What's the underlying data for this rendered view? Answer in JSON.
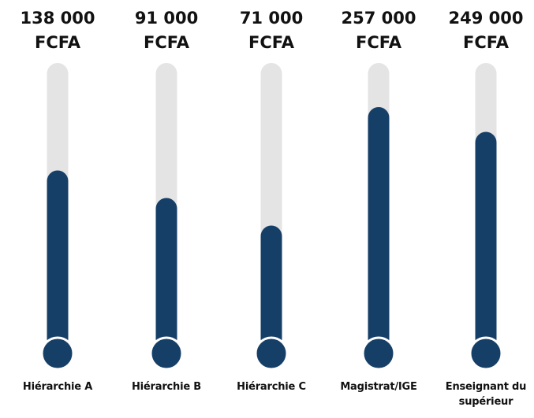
{
  "chart_data": {
    "type": "bar",
    "style": "thermometer",
    "unit": "FCFA",
    "categories": [
      "Hiérarchie A",
      "Hiérarchie B",
      "Hiérarchie C",
      "Magistrat/IGE",
      "Enseignant du supérieur"
    ],
    "values": [
      138000,
      91000,
      71000,
      257000,
      249000
    ],
    "value_labels": [
      "138 000",
      "91 000",
      "71 000",
      "257 000",
      "249 000"
    ],
    "fill_fraction": [
      0.61,
      0.51,
      0.41,
      0.84,
      0.75
    ],
    "colors": {
      "fill": "#163f68",
      "track": "#e4e4e4",
      "bulb_ring": "#ffffff"
    },
    "grid": false,
    "legend": "none"
  }
}
